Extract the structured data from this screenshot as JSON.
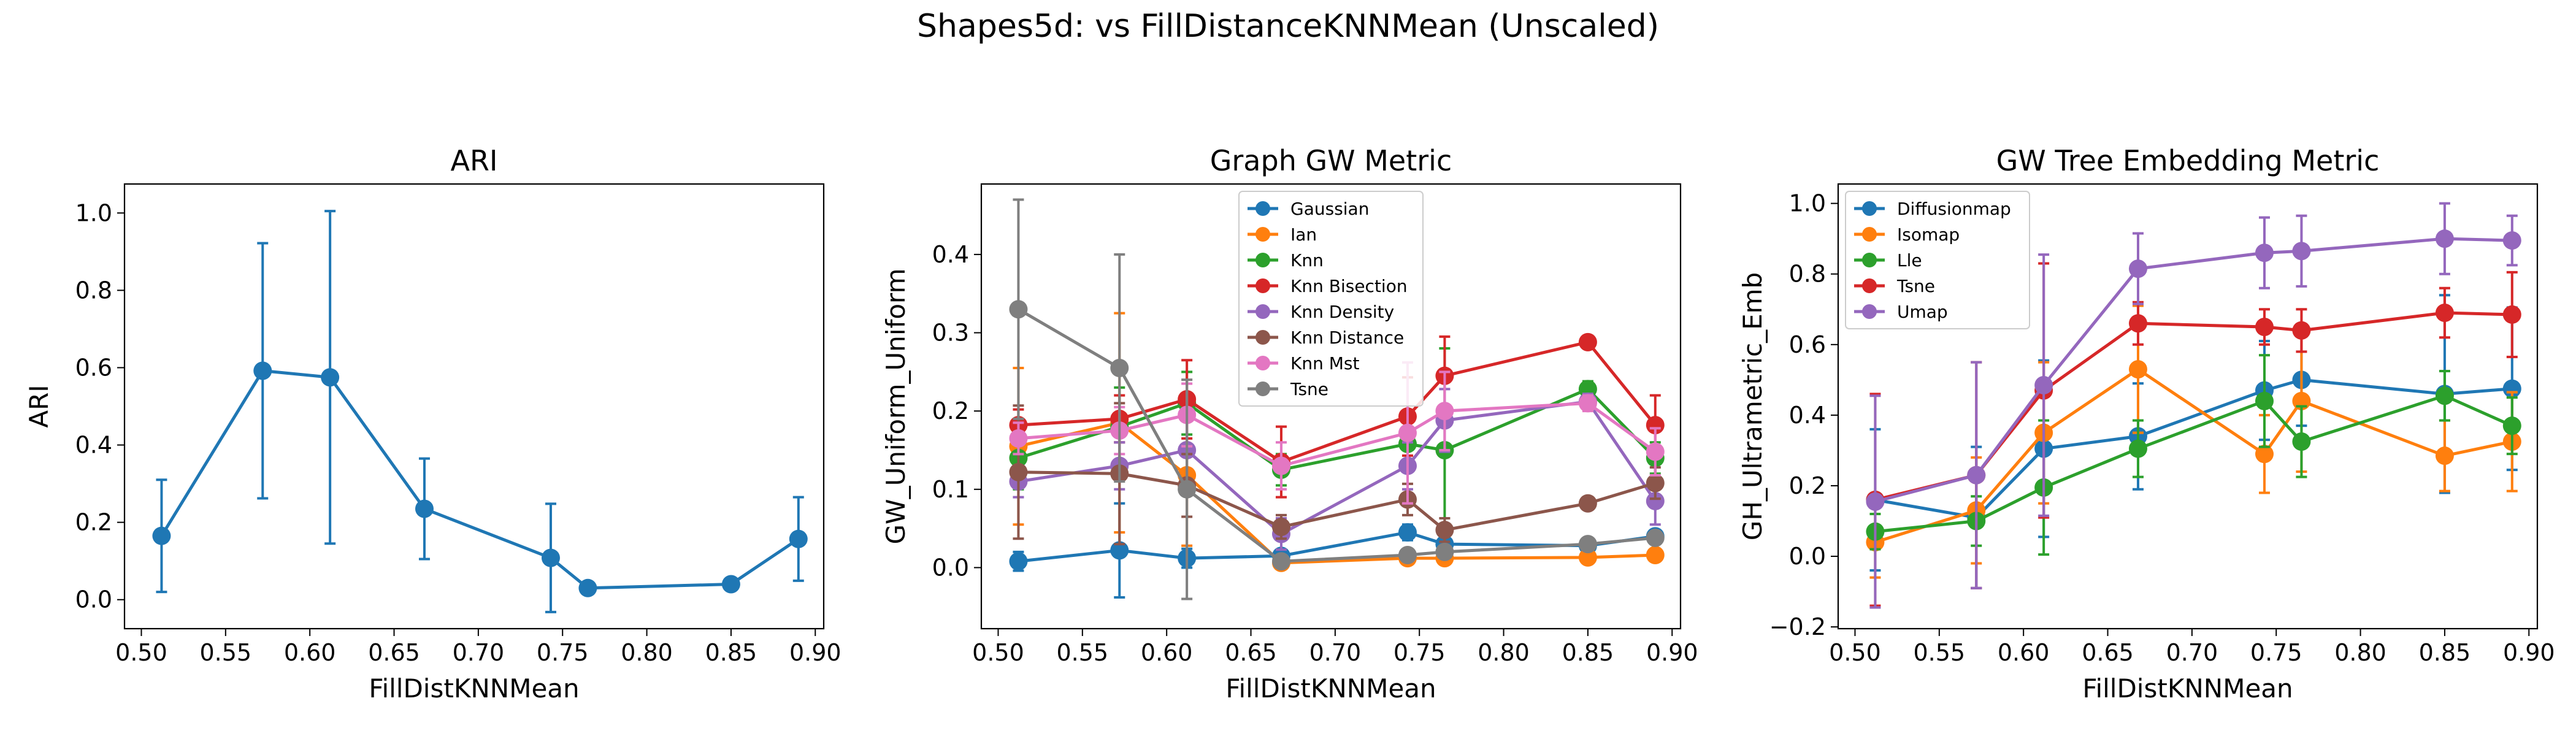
{
  "figure": {
    "title": "Shapes5d: vs FillDistanceKNNMean (Unscaled)"
  },
  "colors": {
    "tab10": [
      "#1f77b4",
      "#ff7f0e",
      "#2ca02c",
      "#d62728",
      "#9467bd",
      "#8c564b",
      "#e377c2",
      "#7f7f7f"
    ]
  },
  "chart_data": [
    {
      "type": "line",
      "title": "ARI",
      "xlabel": "FillDistKNNMean",
      "ylabel": "ARI",
      "xlim": [
        0.49,
        0.905
      ],
      "ylim": [
        -0.075,
        1.075
      ],
      "xticks": [
        "0.50",
        "0.55",
        "0.60",
        "0.65",
        "0.70",
        "0.75",
        "0.80",
        "0.85",
        "0.90"
      ],
      "yticks": [
        "0.0",
        "0.2",
        "0.4",
        "0.6",
        "0.8",
        "1.0"
      ],
      "legend": null,
      "x": [
        0.512,
        0.572,
        0.612,
        0.668,
        0.743,
        0.765,
        0.85,
        0.89
      ],
      "series": [
        {
          "name": "",
          "color": "#1f77b4",
          "values": [
            0.165,
            0.592,
            0.575,
            0.235,
            0.108,
            0.03,
            0.04,
            0.157
          ],
          "err": [
            0.145,
            0.33,
            0.43,
            0.13,
            0.14,
            0.015,
            0.01,
            0.108
          ]
        }
      ]
    },
    {
      "type": "line",
      "title": "Graph GW Metric",
      "xlabel": "FillDistKNNMean",
      "ylabel": "GW_Uniform_Uniform",
      "xlim": [
        0.49,
        0.905
      ],
      "ylim": [
        -0.078,
        0.49
      ],
      "xticks": [
        "0.50",
        "0.55",
        "0.60",
        "0.65",
        "0.70",
        "0.75",
        "0.80",
        "0.85",
        "0.90"
      ],
      "yticks": [
        "0.0",
        "0.1",
        "0.2",
        "0.3",
        "0.4"
      ],
      "legend": "upper-center",
      "x": [
        0.512,
        0.572,
        0.612,
        0.668,
        0.743,
        0.765,
        0.85,
        0.89
      ],
      "series": [
        {
          "name": "Gaussian",
          "color": "#1f77b4",
          "values": [
            0.008,
            0.022,
            0.012,
            0.015,
            0.045,
            0.03,
            0.028,
            0.04
          ],
          "err": [
            0.012,
            0.06,
            0.012,
            0.005,
            0.01,
            0.008,
            0.003,
            0.005
          ]
        },
        {
          "name": "Ian",
          "color": "#ff7f0e",
          "values": [
            0.155,
            0.185,
            0.118,
            0.006,
            0.012,
            0.012,
            0.013,
            0.016
          ],
          "err": [
            0.1,
            0.14,
            0.09,
            0.003,
            0.004,
            0.004,
            0.003,
            0.003
          ]
        },
        {
          "name": "Knn",
          "color": "#2ca02c",
          "values": [
            0.14,
            0.18,
            0.21,
            0.125,
            0.158,
            0.15,
            0.228,
            0.14
          ],
          "err": [
            0.04,
            0.05,
            0.04,
            0.02,
            0.03,
            0.13,
            0.01,
            0.02
          ]
        },
        {
          "name": "Knn Bisection",
          "color": "#d62728",
          "values": [
            0.182,
            0.19,
            0.215,
            0.135,
            0.193,
            0.245,
            0.288,
            0.182
          ],
          "err": [
            0.02,
            0.03,
            0.05,
            0.045,
            0.05,
            0.05,
            0.008,
            0.038
          ]
        },
        {
          "name": "Knn Density",
          "color": "#9467bd",
          "values": [
            0.11,
            0.13,
            0.15,
            0.043,
            0.13,
            0.188,
            0.212,
            0.085
          ],
          "err": [
            0.02,
            0.03,
            0.04,
            0.02,
            0.03,
            0.04,
            0.01,
            0.03
          ]
        },
        {
          "name": "Knn Distance",
          "color": "#8c564b",
          "values": [
            0.122,
            0.12,
            0.105,
            0.052,
            0.087,
            0.048,
            0.082,
            0.108
          ],
          "err": [
            0.085,
            0.09,
            0.04,
            0.015,
            0.02,
            0.015,
            0.005,
            0.02
          ]
        },
        {
          "name": "Knn Mst",
          "color": "#e377c2",
          "values": [
            0.165,
            0.175,
            0.195,
            0.13,
            0.172,
            0.2,
            0.21,
            0.148
          ],
          "err": [
            0.02,
            0.03,
            0.04,
            0.03,
            0.09,
            0.05,
            0.01,
            0.03
          ]
        },
        {
          "name": "Tsne",
          "color": "#7f7f7f",
          "values": [
            0.33,
            0.255,
            0.1,
            0.008,
            0.016,
            0.02,
            0.03,
            0.038
          ],
          "err": [
            0.14,
            0.145,
            0.14,
            0.003,
            0.005,
            0.005,
            0.003,
            0.006
          ]
        }
      ]
    },
    {
      "type": "line",
      "title": "GW Tree Embedding Metric",
      "xlabel": "FillDistKNNMean",
      "ylabel": "GH_Ultrametric_Emb",
      "xlim": [
        0.49,
        0.905
      ],
      "ylim": [
        -0.205,
        1.055
      ],
      "xticks": [
        "0.50",
        "0.55",
        "0.60",
        "0.65",
        "0.70",
        "0.75",
        "0.80",
        "0.85",
        "0.90"
      ],
      "yticks": [
        "−0.2",
        "0.0",
        "0.2",
        "0.4",
        "0.6",
        "0.8",
        "1.0"
      ],
      "legend": "upper-left",
      "x": [
        0.512,
        0.572,
        0.612,
        0.668,
        0.743,
        0.765,
        0.85,
        0.89
      ],
      "series": [
        {
          "name": "Diffusionmap",
          "color": "#1f77b4",
          "values": [
            0.16,
            0.11,
            0.305,
            0.34,
            0.47,
            0.5,
            0.46,
            0.475
          ],
          "err": [
            0.2,
            0.2,
            0.25,
            0.15,
            0.14,
            0.13,
            0.28,
            0.23
          ]
        },
        {
          "name": "Isomap",
          "color": "#ff7f0e",
          "values": [
            0.04,
            0.13,
            0.35,
            0.53,
            0.29,
            0.44,
            0.285,
            0.325
          ],
          "err": [
            0.1,
            0.15,
            0.2,
            0.18,
            0.11,
            0.2,
            0.1,
            0.14
          ]
        },
        {
          "name": "Lle",
          "color": "#2ca02c",
          "values": [
            0.07,
            0.1,
            0.195,
            0.305,
            0.44,
            0.325,
            0.455,
            0.37
          ],
          "err": [
            0.05,
            0.07,
            0.19,
            0.08,
            0.13,
            0.1,
            0.07,
            0.08
          ]
        },
        {
          "name": "Tsne",
          "color": "#d62728",
          "values": [
            0.16,
            0.23,
            0.47,
            0.66,
            0.65,
            0.64,
            0.69,
            0.685
          ],
          "err": [
            0.3,
            0.32,
            0.36,
            0.06,
            0.05,
            0.06,
            0.07,
            0.12
          ]
        },
        {
          "name": "Umap",
          "color": "#9467bd",
          "values": [
            0.155,
            0.23,
            0.485,
            0.815,
            0.86,
            0.865,
            0.9,
            0.895
          ],
          "err": [
            0.3,
            0.32,
            0.37,
            0.1,
            0.1,
            0.1,
            0.1,
            0.07
          ]
        }
      ]
    }
  ]
}
